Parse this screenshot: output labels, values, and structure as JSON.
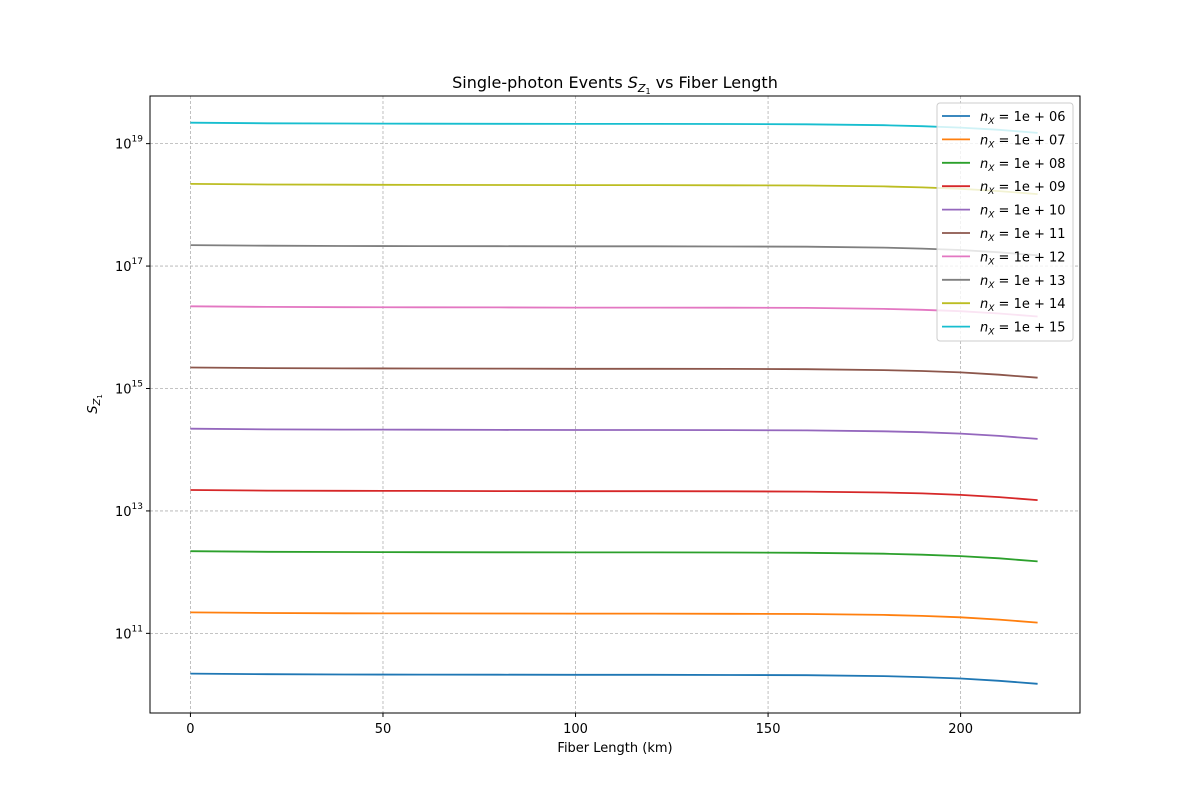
{
  "chart_data": {
    "type": "line",
    "title": "Single-photon Events $S_{Z_1}$ vs Fiber Length",
    "title_parts": {
      "prefix": "Single-photon Events ",
      "sym": "S",
      "sub": "Z",
      "subsub": "1",
      "suffix": " vs Fiber Length"
    },
    "xlabel": "Fiber Length (km)",
    "ylabel": "$S_{Z_1}$",
    "ylabel_parts": {
      "sym": "S",
      "sub": "Z",
      "subsub": "1"
    },
    "x_ticks": [
      "0",
      "50",
      "100",
      "150",
      "200"
    ],
    "y_ticks": [
      {
        "base": "10",
        "exp": "11",
        "value": 100000000000.0
      },
      {
        "base": "10",
        "exp": "13",
        "value": 10000000000000.0
      },
      {
        "base": "10",
        "exp": "15",
        "value": 1000000000000000.0
      },
      {
        "base": "10",
        "exp": "17",
        "value": 1e+17
      },
      {
        "base": "10",
        "exp": "19",
        "value": 1e+19
      }
    ],
    "xlim": [
      -10.5,
      231
    ],
    "ylim": [
      5000000000.0,
      6e+19
    ],
    "yscale": "log",
    "grid": true,
    "legend_position": "top-right",
    "x": [
      0,
      20,
      40,
      60,
      80,
      100,
      120,
      140,
      160,
      180,
      190,
      200,
      210,
      220
    ],
    "series": [
      {
        "name": "n_X = 1e+06",
        "color": "#1f77b4",
        "values": [
          22000000000.0,
          21500000000.0,
          21300000000.0,
          21200000000.0,
          21100000000.0,
          21000000000.0,
          21000000000.0,
          20900000000.0,
          20700000000.0,
          20000000000.0,
          19300000000.0,
          18300000000.0,
          16800000000.0,
          15000000000.0
        ]
      },
      {
        "name": "n_X = 1e+07",
        "color": "#ff7f0e",
        "values": [
          220000000000.0,
          215000000000.0,
          213000000000.0,
          212000000000.0,
          211000000000.0,
          210000000000.0,
          210000000000.0,
          209000000000.0,
          207000000000.0,
          200000000000.0,
          193000000000.0,
          183000000000.0,
          168000000000.0,
          150000000000.0
        ]
      },
      {
        "name": "n_X = 1e+08",
        "color": "#2ca02c",
        "values": [
          2200000000000.0,
          2150000000000.0,
          2130000000000.0,
          2120000000000.0,
          2110000000000.0,
          2100000000000.0,
          2100000000000.0,
          2090000000000.0,
          2070000000000.0,
          2000000000000.0,
          1930000000000.0,
          1830000000000.0,
          1680000000000.0,
          1500000000000.0
        ]
      },
      {
        "name": "n_X = 1e+09",
        "color": "#d62728",
        "values": [
          22000000000000.0,
          21500000000000.0,
          21300000000000.0,
          21200000000000.0,
          21100000000000.0,
          21000000000000.0,
          21000000000000.0,
          20900000000000.0,
          20700000000000.0,
          20000000000000.0,
          19300000000000.0,
          18300000000000.0,
          16800000000000.0,
          15000000000000.0
        ]
      },
      {
        "name": "n_X = 1e+10",
        "color": "#9467bd",
        "values": [
          220000000000000.0,
          215000000000000.0,
          213000000000000.0,
          212000000000000.0,
          211000000000000.0,
          210000000000000.0,
          210000000000000.0,
          209000000000000.0,
          207000000000000.0,
          200000000000000.0,
          193000000000000.0,
          183000000000000.0,
          168000000000000.0,
          150000000000000.0
        ]
      },
      {
        "name": "n_X = 1e+11",
        "color": "#8c564b",
        "values": [
          2200000000000000.0,
          2150000000000000.0,
          2130000000000000.0,
          2120000000000000.0,
          2110000000000000.0,
          2100000000000000.0,
          2100000000000000.0,
          2090000000000000.0,
          2070000000000000.0,
          2000000000000000.0,
          1930000000000000.0,
          1830000000000000.0,
          1680000000000000.0,
          1500000000000000.0
        ]
      },
      {
        "name": "n_X = 1e+12",
        "color": "#e377c2",
        "values": [
          2.2e+16,
          2.15e+16,
          2.13e+16,
          2.12e+16,
          2.11e+16,
          2.1e+16,
          2.1e+16,
          2.09e+16,
          2.07e+16,
          2e+16,
          1.93e+16,
          1.83e+16,
          1.68e+16,
          1.5e+16
        ]
      },
      {
        "name": "n_X = 1e+13",
        "color": "#7f7f7f",
        "values": [
          2.2e+17,
          2.15e+17,
          2.13e+17,
          2.12e+17,
          2.11e+17,
          2.1e+17,
          2.1e+17,
          2.09e+17,
          2.07e+17,
          2e+17,
          1.93e+17,
          1.83e+17,
          1.68e+17,
          1.5e+17
        ]
      },
      {
        "name": "n_X = 1e+14",
        "color": "#bcbd22",
        "values": [
          2.2e+18,
          2.15e+18,
          2.13e+18,
          2.12e+18,
          2.11e+18,
          2.1e+18,
          2.1e+18,
          2.09e+18,
          2.07e+18,
          2e+18,
          1.93e+18,
          1.83e+18,
          1.68e+18,
          1.5e+18
        ]
      },
      {
        "name": "n_X = 1e+15",
        "color": "#17becf",
        "values": [
          2.2e+19,
          2.15e+19,
          2.13e+19,
          2.12e+19,
          2.11e+19,
          2.1e+19,
          2.1e+19,
          2.09e+19,
          2.07e+19,
          2e+19,
          1.93e+19,
          1.83e+19,
          1.68e+19,
          1.5e+19
        ]
      }
    ],
    "legend_labels": [
      {
        "lhs": "n",
        "sub": "X",
        "rhs": " = 1e + 06"
      },
      {
        "lhs": "n",
        "sub": "X",
        "rhs": " = 1e + 07"
      },
      {
        "lhs": "n",
        "sub": "X",
        "rhs": " = 1e + 08"
      },
      {
        "lhs": "n",
        "sub": "X",
        "rhs": " = 1e + 09"
      },
      {
        "lhs": "n",
        "sub": "X",
        "rhs": " = 1e + 10"
      },
      {
        "lhs": "n",
        "sub": "X",
        "rhs": " = 1e + 11"
      },
      {
        "lhs": "n",
        "sub": "X",
        "rhs": " = 1e + 12"
      },
      {
        "lhs": "n",
        "sub": "X",
        "rhs": " = 1e + 13"
      },
      {
        "lhs": "n",
        "sub": "X",
        "rhs": " = 1e + 14"
      },
      {
        "lhs": "n",
        "sub": "X",
        "rhs": " = 1e + 15"
      }
    ]
  }
}
